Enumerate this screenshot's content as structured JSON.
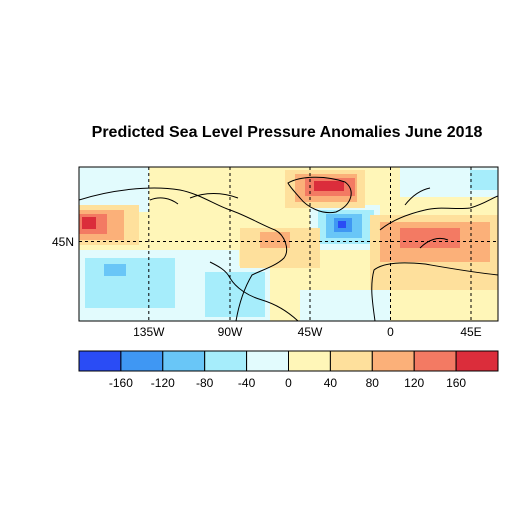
{
  "title": "Predicted Sea Level Pressure Anomalies June 2018",
  "map": {
    "lon_ticks": [
      "135W",
      "90W",
      "45W",
      "0",
      "45E"
    ],
    "lat_ticks": [
      "45N"
    ]
  },
  "colorbar": {
    "colors": [
      "#2a4cf5",
      "#3f97f3",
      "#69c6f7",
      "#a6edfb",
      "#e2fbfd",
      "#fff6b8",
      "#fee09c",
      "#fbb079",
      "#f37a63",
      "#db2d3b"
    ],
    "tick_labels": [
      "-160",
      "-120",
      "-80",
      "-40",
      "0",
      "40",
      "80",
      "120",
      "160"
    ]
  }
}
